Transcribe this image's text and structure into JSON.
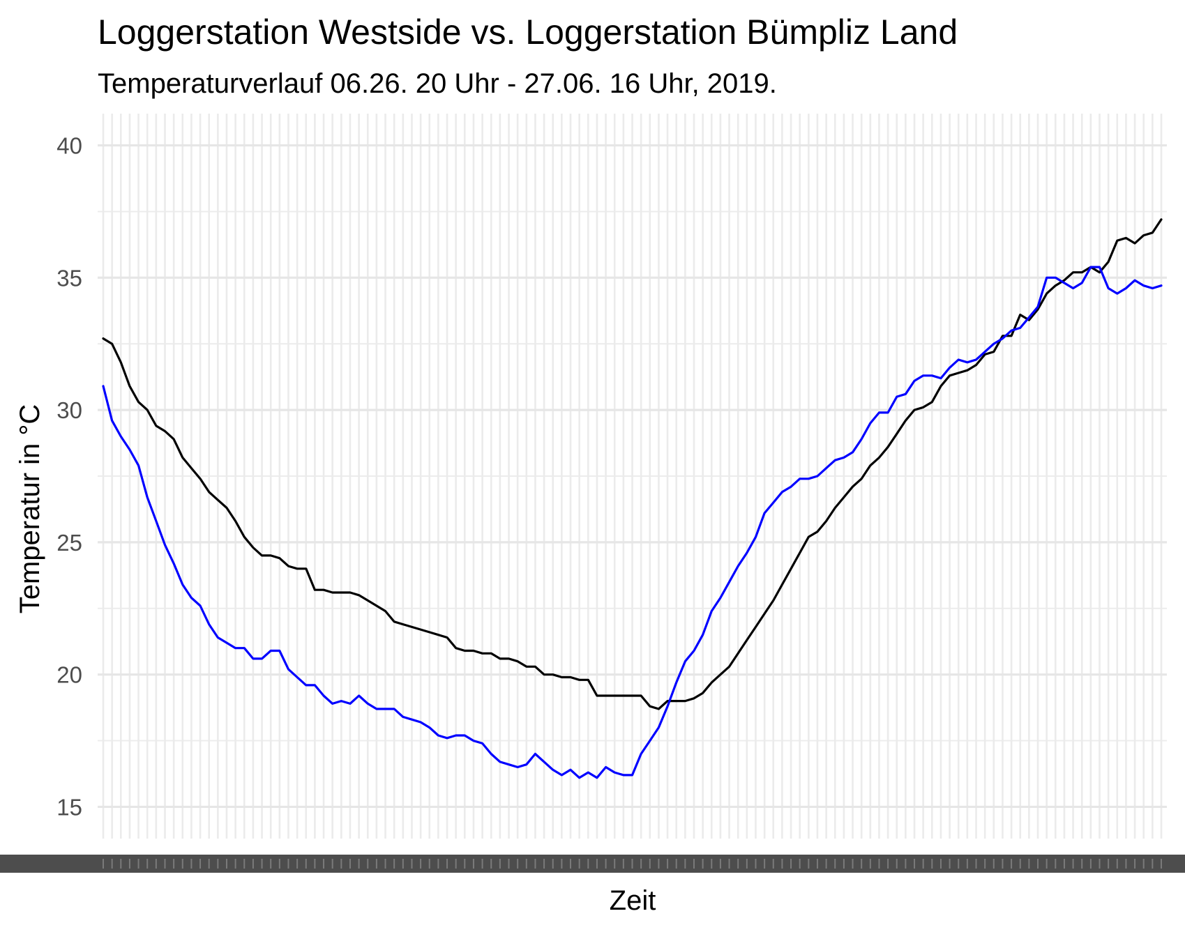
{
  "chart_data": {
    "type": "line",
    "title": "Loggerstation Westside vs. Loggerstation Bümpliz Land",
    "subtitle": "Temperaturverlauf 06.26. 20 Uhr - 27.06. 16 Uhr, 2019.",
    "xlabel": "Zeit",
    "ylabel": "Temperatur in °C",
    "ylim": [
      13.8,
      41.2
    ],
    "yticks": [
      15,
      20,
      25,
      30,
      35,
      40
    ],
    "grid": true,
    "x": [
      0,
      1,
      2,
      3,
      4,
      5,
      6,
      7,
      8,
      9,
      10,
      11,
      12,
      13,
      14,
      15,
      16,
      17,
      18,
      19,
      20,
      21,
      22,
      23,
      24,
      25,
      26,
      27,
      28,
      29,
      30,
      31,
      32,
      33,
      34,
      35,
      36,
      37,
      38,
      39,
      40,
      41,
      42,
      43,
      44,
      45,
      46,
      47,
      48,
      49,
      50,
      51,
      52,
      53,
      54,
      55,
      56,
      57,
      58,
      59,
      60,
      61,
      62,
      63,
      64,
      65,
      66,
      67,
      68,
      69,
      70,
      71,
      72,
      73,
      74,
      75,
      76,
      77,
      78,
      79,
      80,
      81,
      82,
      83,
      84,
      85,
      86,
      87,
      88,
      89,
      90,
      91,
      92,
      93,
      94,
      95,
      96,
      97,
      98,
      99,
      100,
      101,
      102,
      103,
      104,
      105,
      106,
      107,
      108,
      109,
      110,
      111,
      112,
      113,
      114,
      115,
      116,
      117,
      118,
      119,
      120
    ],
    "series": [
      {
        "color": "#000000",
        "values": [
          32.7,
          32.5,
          31.8,
          30.9,
          30.3,
          30.0,
          29.4,
          29.2,
          28.9,
          28.2,
          27.8,
          27.4,
          26.9,
          26.6,
          26.3,
          25.8,
          25.2,
          24.8,
          24.5,
          24.5,
          24.4,
          24.1,
          24.0,
          24.0,
          23.2,
          23.2,
          23.1,
          23.1,
          23.1,
          23.0,
          22.8,
          22.6,
          22.4,
          22.0,
          21.9,
          21.8,
          21.7,
          21.6,
          21.5,
          21.4,
          21.0,
          20.9,
          20.9,
          20.8,
          20.8,
          20.6,
          20.6,
          20.5,
          20.3,
          20.3,
          20.0,
          20.0,
          19.9,
          19.9,
          19.8,
          19.8,
          19.2,
          19.2,
          19.2,
          19.2,
          19.2,
          19.2,
          18.8,
          18.7,
          19.0,
          19.0,
          19.0,
          19.1,
          19.3,
          19.7,
          20.0,
          20.3,
          20.8,
          21.3,
          21.8,
          22.3,
          22.8,
          23.4,
          24.0,
          24.6,
          25.2,
          25.4,
          25.8,
          26.3,
          26.7,
          27.1,
          27.4,
          27.9,
          28.2,
          28.6,
          29.1,
          29.6,
          30.0,
          30.1,
          30.3,
          30.9,
          31.3,
          31.4,
          31.5,
          31.7,
          32.1,
          32.2,
          32.8,
          32.8,
          33.6,
          33.4,
          33.8,
          34.4,
          34.7,
          34.9,
          35.2,
          35.2,
          35.4,
          35.2,
          35.6,
          36.4,
          36.5,
          36.3,
          36.6,
          36.7,
          37.2
        ]
      },
      {
        "color": "#0000ff",
        "values": [
          30.9,
          29.6,
          29.0,
          28.5,
          27.9,
          26.7,
          25.8,
          24.9,
          24.2,
          23.4,
          22.9,
          22.6,
          21.9,
          21.4,
          21.2,
          21.0,
          21.0,
          20.6,
          20.6,
          20.9,
          20.9,
          20.2,
          19.9,
          19.6,
          19.6,
          19.2,
          18.9,
          19.0,
          18.9,
          19.2,
          18.9,
          18.7,
          18.7,
          18.7,
          18.4,
          18.3,
          18.2,
          18.0,
          17.7,
          17.6,
          17.7,
          17.7,
          17.5,
          17.4,
          17.0,
          16.7,
          16.6,
          16.5,
          16.6,
          17.0,
          16.7,
          16.4,
          16.2,
          16.4,
          16.1,
          16.3,
          16.1,
          16.5,
          16.3,
          16.2,
          16.2,
          17.0,
          17.5,
          18.0,
          18.8,
          19.7,
          20.5,
          20.9,
          21.5,
          22.4,
          22.9,
          23.5,
          24.1,
          24.6,
          25.2,
          26.1,
          26.5,
          26.9,
          27.1,
          27.4,
          27.4,
          27.5,
          27.8,
          28.1,
          28.2,
          28.4,
          28.9,
          29.5,
          29.9,
          29.9,
          30.5,
          30.6,
          31.1,
          31.3,
          31.3,
          31.2,
          31.6,
          31.9,
          31.8,
          31.9,
          32.2,
          32.5,
          32.7,
          33.0,
          33.1,
          33.5,
          33.9,
          35.0,
          35.0,
          34.8,
          34.6,
          34.8,
          35.4,
          35.4,
          34.6,
          34.4,
          34.6,
          34.9,
          34.7,
          34.6,
          34.7
        ]
      }
    ]
  }
}
